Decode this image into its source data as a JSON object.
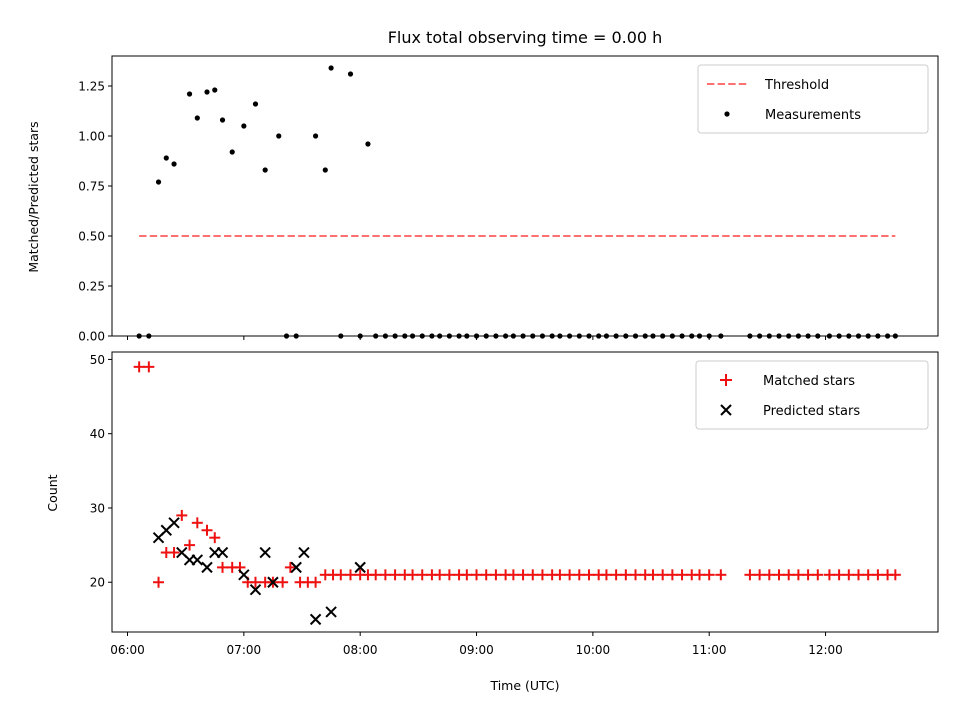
{
  "colors": {
    "threshold": "#ff7070",
    "matched": "#ee1111",
    "predicted": "#000000",
    "measurement": "#000000"
  },
  "chart_data": [
    {
      "type": "scatter",
      "title": "Flux total observing time = 0.00 h",
      "ylabel": "Matched/Predicted stars",
      "xlim": [
        "05:52",
        "12:58"
      ],
      "ylim": [
        0,
        1.4
      ],
      "yticks": [
        "0.00",
        "0.25",
        "0.50",
        "0.75",
        "1.00",
        "1.25"
      ],
      "grid": false,
      "legend_position": "top-right",
      "series": [
        {
          "name": "Threshold",
          "kind": "dashed-line",
          "x": [
            "06:06",
            "12:36"
          ],
          "y": [
            0.5,
            0.5
          ]
        },
        {
          "name": "Measurements",
          "kind": "points",
          "x": [
            "06:06",
            "06:11",
            "06:16",
            "06:20",
            "06:24",
            "06:32",
            "06:36",
            "06:41",
            "06:45",
            "06:49",
            "06:54",
            "07:00",
            "07:06",
            "07:11",
            "07:18",
            "07:22",
            "07:27",
            "07:37",
            "07:42",
            "07:45",
            "07:50",
            "07:55",
            "08:00",
            "08:04",
            "08:08",
            "08:13",
            "08:18",
            "08:23",
            "08:27",
            "08:32",
            "08:37",
            "08:41",
            "08:46",
            "08:51",
            "08:55",
            "09:00",
            "09:05",
            "09:10",
            "09:15",
            "09:19",
            "09:24",
            "09:29",
            "09:34",
            "09:39",
            "09:43",
            "09:48",
            "09:53",
            "09:58",
            "10:03",
            "10:07",
            "10:12",
            "10:17",
            "10:22",
            "10:27",
            "10:31",
            "10:36",
            "10:41",
            "10:46",
            "10:51",
            "10:55",
            "11:00",
            "11:06",
            "11:21",
            "11:26",
            "11:31",
            "11:36",
            "11:41",
            "11:46",
            "11:51",
            "11:56",
            "12:02",
            "12:07",
            "12:12",
            "12:17",
            "12:22",
            "12:27",
            "12:32",
            "12:36"
          ],
          "y": [
            0,
            0,
            0.77,
            0.89,
            0.86,
            1.21,
            1.09,
            1.22,
            1.23,
            1.08,
            0.92,
            1.05,
            1.16,
            0.83,
            1.0,
            0,
            0,
            1.0,
            0.83,
            1.34,
            0,
            1.31,
            0,
            0.96,
            0,
            0,
            0,
            0,
            0,
            0,
            0,
            0,
            0,
            0,
            0,
            0,
            0,
            0,
            0,
            0,
            0,
            0,
            0,
            0,
            0,
            0,
            0,
            0,
            0,
            0,
            0,
            0,
            0,
            0,
            0,
            0,
            0,
            0,
            0,
            0,
            0,
            0,
            0,
            0,
            0,
            0,
            0,
            0,
            0,
            0,
            0,
            0,
            0,
            0,
            0,
            0,
            0,
            0
          ]
        }
      ]
    },
    {
      "type": "scatter",
      "xlabel": "Time (UTC)",
      "ylabel": "Count",
      "xlim": [
        "05:52",
        "12:58"
      ],
      "ylim": [
        13.3,
        51
      ],
      "xticks": [
        "06:00",
        "07:00",
        "08:00",
        "09:00",
        "10:00",
        "11:00",
        "12:00"
      ],
      "yticks": [
        "20",
        "30",
        "40",
        "50"
      ],
      "grid": false,
      "legend_position": "top-right",
      "series": [
        {
          "name": "Matched stars",
          "marker": "plus",
          "x": [
            "06:06",
            "06:11",
            "06:16",
            "06:20",
            "06:24",
            "06:28",
            "06:32",
            "06:36",
            "06:41",
            "06:45",
            "06:49",
            "06:54",
            "06:58",
            "07:02",
            "07:06",
            "07:11",
            "07:15",
            "07:20",
            "07:24",
            "07:29",
            "07:33",
            "07:37",
            "07:42",
            "07:46",
            "07:50",
            "07:55",
            "08:00",
            "08:04",
            "08:08",
            "08:13",
            "08:18",
            "08:23",
            "08:27",
            "08:32",
            "08:37",
            "08:41",
            "08:46",
            "08:51",
            "08:55",
            "09:00",
            "09:05",
            "09:10",
            "09:15",
            "09:19",
            "09:24",
            "09:29",
            "09:34",
            "09:39",
            "09:43",
            "09:48",
            "09:53",
            "09:58",
            "10:03",
            "10:07",
            "10:12",
            "10:17",
            "10:22",
            "10:27",
            "10:31",
            "10:36",
            "10:41",
            "10:46",
            "10:51",
            "10:55",
            "11:00",
            "11:06",
            "11:21",
            "11:26",
            "11:31",
            "11:36",
            "11:41",
            "11:46",
            "11:51",
            "11:56",
            "12:02",
            "12:07",
            "12:12",
            "12:17",
            "12:22",
            "12:27",
            "12:32",
            "12:36"
          ],
          "y": [
            49,
            49,
            20,
            24,
            24,
            29,
            25,
            28,
            27,
            26,
            22,
            22,
            22,
            20,
            20,
            20,
            20,
            20,
            22,
            20,
            20,
            20,
            21,
            21,
            21,
            21,
            21,
            21,
            21,
            21,
            21,
            21,
            21,
            21,
            21,
            21,
            21,
            21,
            21,
            21,
            21,
            21,
            21,
            21,
            21,
            21,
            21,
            21,
            21,
            21,
            21,
            21,
            21,
            21,
            21,
            21,
            21,
            21,
            21,
            21,
            21,
            21,
            21,
            21,
            21,
            21,
            21,
            21,
            21,
            21,
            21,
            21,
            21,
            21,
            21,
            21,
            21,
            21,
            21,
            21,
            21,
            21
          ]
        },
        {
          "name": "Predicted stars",
          "marker": "x",
          "x": [
            "06:16",
            "06:20",
            "06:24",
            "06:28",
            "06:32",
            "06:36",
            "06:41",
            "06:45",
            "06:49",
            "07:00",
            "07:06",
            "07:11",
            "07:15",
            "07:27",
            "07:31",
            "07:37",
            "07:45",
            "08:00"
          ],
          "y": [
            26,
            27,
            28,
            24,
            23,
            23,
            22,
            24,
            24,
            21,
            19,
            24,
            20,
            22,
            24,
            15,
            16,
            22
          ]
        }
      ]
    }
  ]
}
